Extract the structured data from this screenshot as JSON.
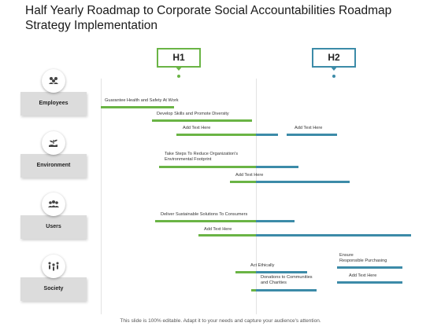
{
  "slide": {
    "title": "Half Yearly Roadmap to Corporate Social Accountabilities Roadmap Strategy Implementation",
    "footer": "This slide is 100% editable. Adapt it to your needs and capture your audience's attention."
  },
  "colors": {
    "green": "#6ab445",
    "blue": "#3c8ba8",
    "gray_label": "#dcdcdc"
  },
  "halves": [
    {
      "label": "H1",
      "color": "#6ab445"
    },
    {
      "label": "H2",
      "color": "#3c8ba8"
    }
  ],
  "categories": [
    {
      "label": "Employees",
      "icon": "group-icon"
    },
    {
      "label": "Environment",
      "icon": "hand-plant-icon"
    },
    {
      "label": "Users",
      "icon": "users-icon"
    },
    {
      "label": "Society",
      "icon": "society-icon"
    }
  ],
  "tasks": [
    {
      "text": "Guarantee Health and Safety At Work"
    },
    {
      "text": "Develop Skills and Promote Diversity"
    },
    {
      "text": "Add Text Here"
    },
    {
      "text": "Add Text Here"
    },
    {
      "text": "Take Steps To Reduce Organization's\nEnvironmental Footprint"
    },
    {
      "text": "Add Text Here"
    },
    {
      "text": "Deliver Sustainable Solutions To Consumers"
    },
    {
      "text": "Add Text Here"
    },
    {
      "text": "Ensure\nResponsible Purchasing"
    },
    {
      "text": "Act Ethically"
    },
    {
      "text": "Add Text Here"
    },
    {
      "text": "Donations to Communities\nand Charities"
    }
  ]
}
